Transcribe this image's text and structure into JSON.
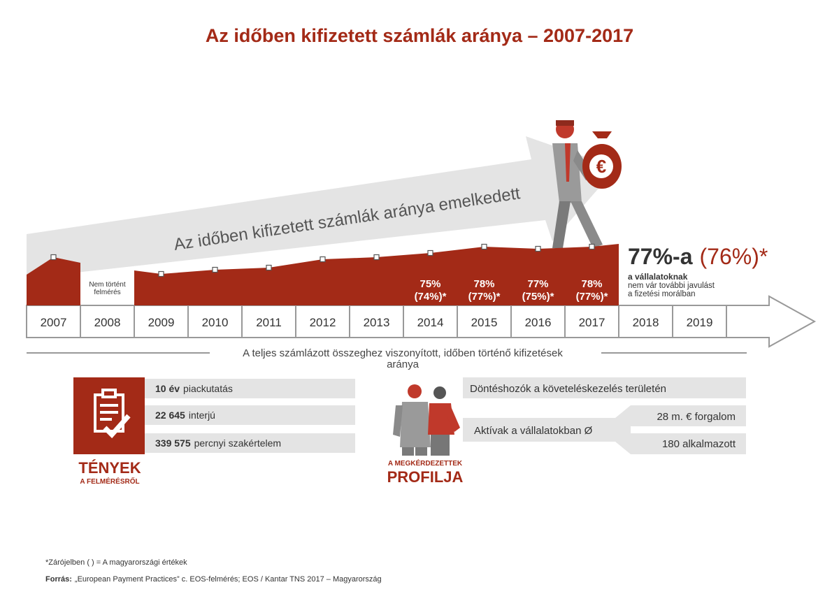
{
  "title": "Az időben kifizetett számlák aránya – 2007-2017",
  "arrow_text": "Az időben kifizetett számlák aránya emelkedett",
  "chart_data": {
    "type": "area",
    "categories": [
      "2007",
      "2008",
      "2009",
      "2010",
      "2011",
      "2012",
      "2013",
      "2014",
      "2015",
      "2016",
      "2017",
      "2018",
      "2019"
    ],
    "values": [
      73,
      null,
      65,
      67,
      68,
      72,
      73,
      75,
      78,
      77,
      78,
      null,
      null
    ],
    "value_labels": [
      null,
      null,
      null,
      null,
      null,
      null,
      null,
      "75%",
      "78%",
      "77%",
      "78%",
      null,
      null
    ],
    "hu_values": [
      null,
      null,
      null,
      null,
      null,
      null,
      null,
      74,
      77,
      75,
      77,
      null,
      null
    ],
    "hu_value_labels": [
      null,
      null,
      null,
      null,
      null,
      null,
      null,
      "(74%)*",
      "(77%)*",
      "(75%)*",
      "(77%)*",
      null,
      null
    ],
    "gap_note": [
      "Nem történt",
      "felmérés"
    ],
    "ylim": [
      50,
      85
    ],
    "color": "#a32a17"
  },
  "highlight": {
    "label": "77%-a",
    "hu_label": "(76%)*",
    "lines": [
      "a vállalatoknak",
      "nem vár további javulást",
      "a fizetési morálban"
    ]
  },
  "axis_caption": [
    "A teljes számlázott összeghez viszonyított, időben történő kifizetések",
    "aránya"
  ],
  "facts": {
    "title": "TÉNYEK",
    "subtitle": "A FELMÉRÉSRŐL",
    "items": [
      {
        "bold": "10 év",
        "text": "piackutatás"
      },
      {
        "bold": "22 645",
        "text": "interjú"
      },
      {
        "bold": "339 575",
        "text": "percnyi szakértelem"
      }
    ]
  },
  "profile": {
    "subtitle": "A MEGKÉRDEZETTEK",
    "title": "PROFILJA",
    "role": "Döntéshozók a követeléskezelés területén",
    "size_label": "Aktívak a vállalatokban Ø",
    "sizes": [
      "28 m. € forgalom",
      "180 alkalmazott"
    ]
  },
  "footnote": "*Zárójelben ( ) = A magyarországi értékek",
  "source": {
    "bold": "Forrás:",
    "text": "„European Payment Practices” c. EOS-felmérés; EOS / Kantar TNS 2017 – Magyarország"
  }
}
